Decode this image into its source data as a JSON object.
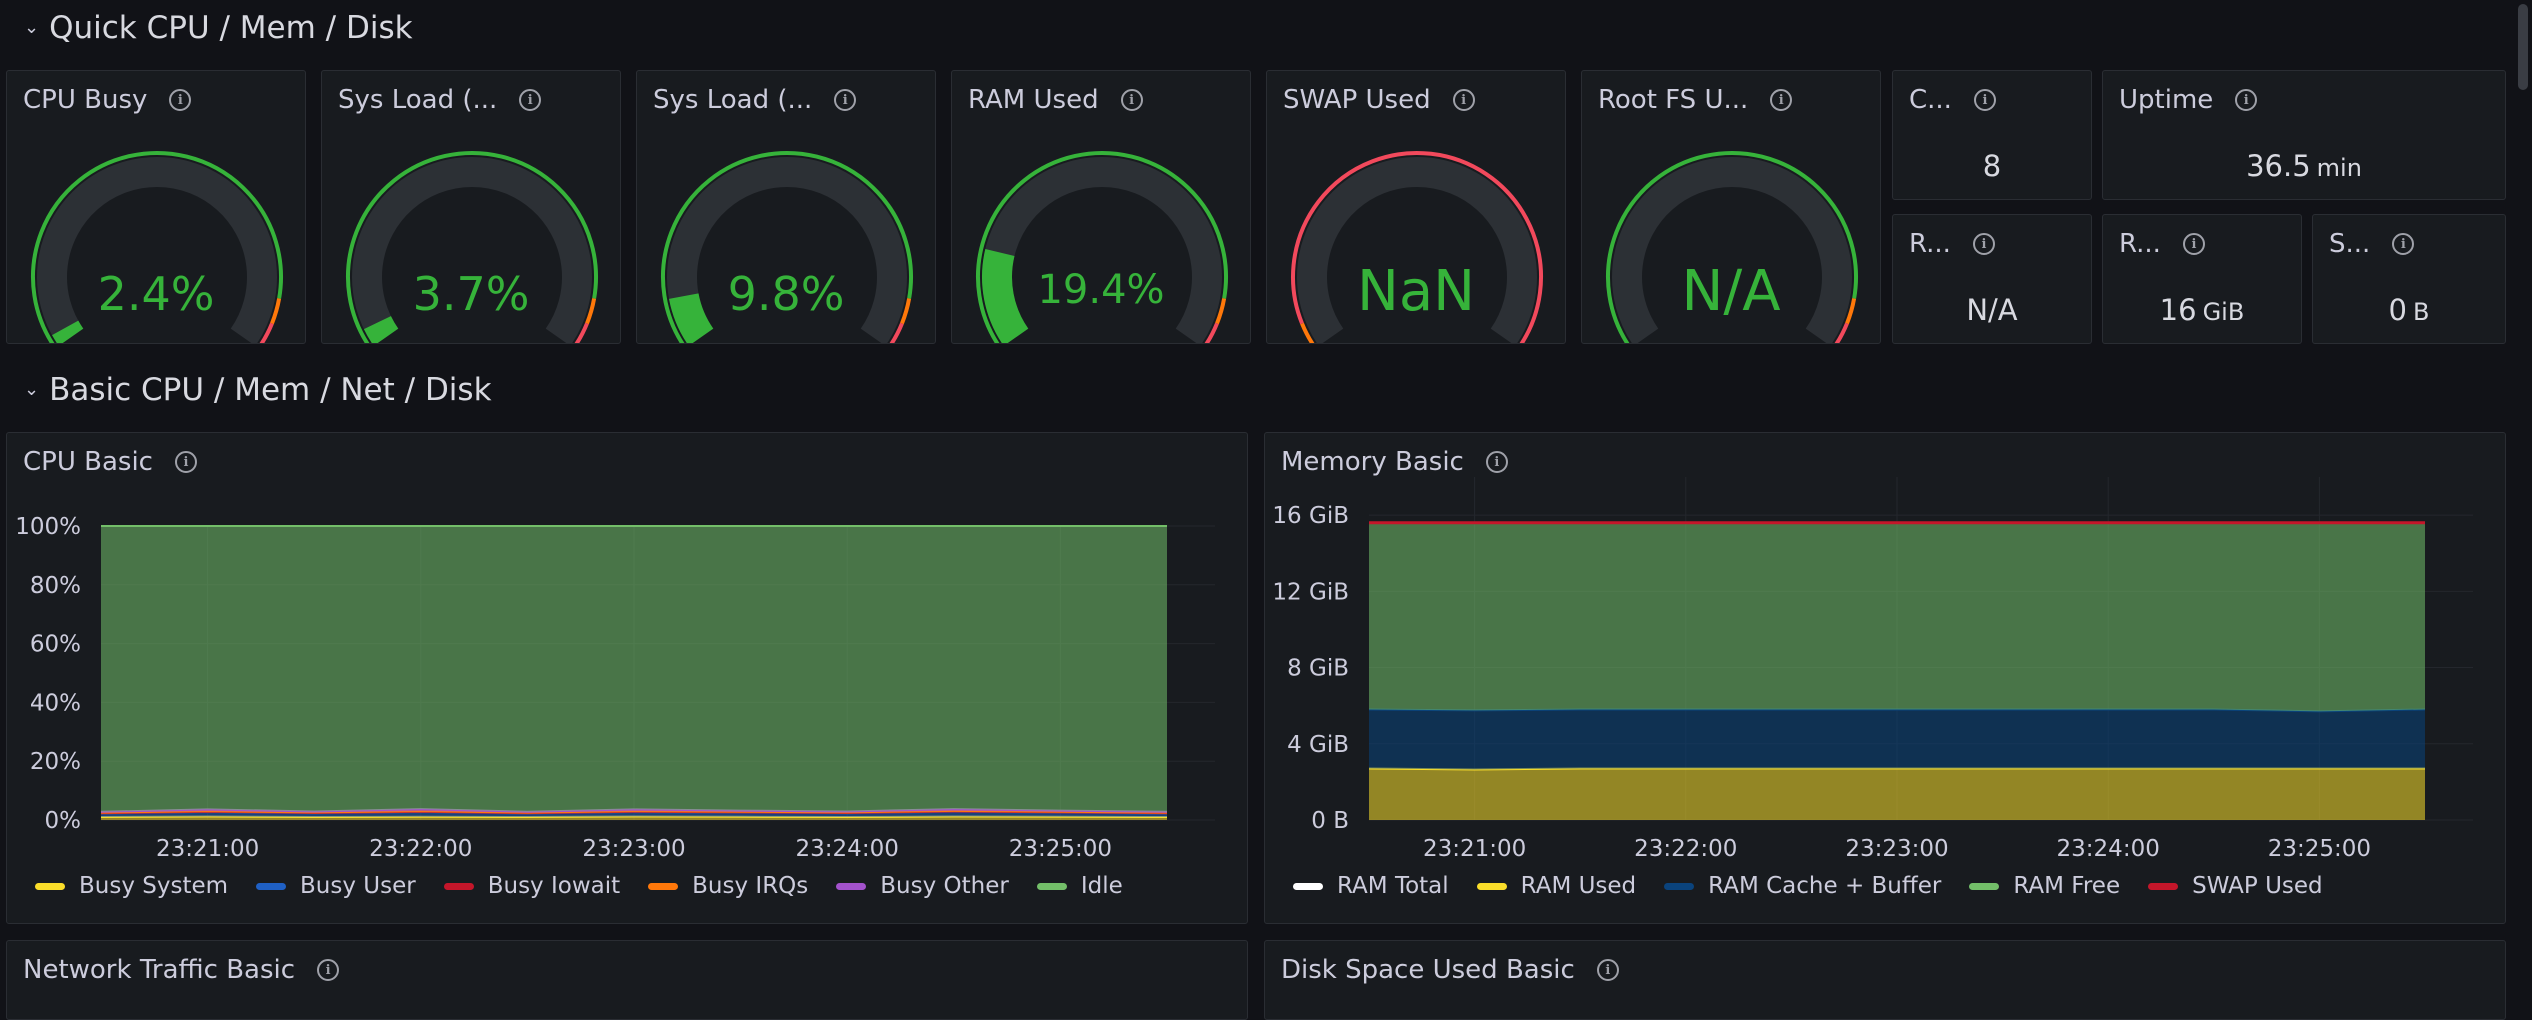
{
  "rows": {
    "quick": {
      "title": "Quick CPU / Mem / Disk"
    },
    "basic": {
      "title": "Basic CPU / Mem / Net / Disk"
    }
  },
  "gauges": [
    {
      "title": "CPU Busy",
      "value": "2.4%",
      "fraction": 0.024,
      "state": "ok"
    },
    {
      "title": "Sys Load (...",
      "value": "3.7%",
      "fraction": 0.037,
      "state": "ok"
    },
    {
      "title": "Sys Load (...",
      "value": "9.8%",
      "fraction": 0.098,
      "state": "ok"
    },
    {
      "title": "RAM Used",
      "value": "19.4%",
      "fraction": 0.194,
      "state": "ok"
    },
    {
      "title": "SWAP Used",
      "value": "NaN",
      "fraction": 0,
      "state": "nan"
    },
    {
      "title": "Root FS U...",
      "value": "N/A",
      "fraction": 0,
      "state": "na"
    }
  ],
  "stats": {
    "cores": {
      "title": "C...",
      "value": "8",
      "unit": ""
    },
    "uptime": {
      "title": "Uptime",
      "value": "36.5",
      "unit": "min"
    },
    "rootfs_total": {
      "title": "R...",
      "value": "N/A",
      "unit": ""
    },
    "ram_total": {
      "title": "R...",
      "value": "16",
      "unit": "GiB"
    },
    "swap_total": {
      "title": "S...",
      "value": "0",
      "unit": "B"
    }
  },
  "panels": {
    "cpu_basic": {
      "title": "CPU Basic"
    },
    "memory_basic": {
      "title": "Memory Basic"
    },
    "network_traffic": {
      "title": "Network Traffic Basic"
    },
    "disk_space": {
      "title": "Disk Space Used Basic"
    }
  },
  "colors": {
    "gauge_green": "#36b33a",
    "threshold_orange": "#ff780a",
    "threshold_red": "#f2495c",
    "track": "#2c3035"
  },
  "chart_data": [
    {
      "type": "area",
      "name": "CPU Basic",
      "x": [
        "23:20:40",
        "23:21:00",
        "23:21:30",
        "23:22:00",
        "23:22:30",
        "23:23:00",
        "23:23:30",
        "23:24:00",
        "23:24:30",
        "23:25:00",
        "23:25:10"
      ],
      "x_ticks": [
        "23:21:00",
        "23:22:00",
        "23:23:00",
        "23:24:00",
        "23:25:00"
      ],
      "y_ticks": [
        "0%",
        "20%",
        "40%",
        "60%",
        "80%",
        "100%"
      ],
      "ylim": [
        0,
        100
      ],
      "stacked": true,
      "series": [
        {
          "name": "Busy System",
          "color": "#fade2a",
          "values": [
            1.0,
            1.2,
            1.0,
            1.1,
            1.0,
            1.2,
            1.1,
            1.0,
            1.2,
            1.1,
            1.0
          ]
        },
        {
          "name": "Busy User",
          "color": "#1f60c4",
          "values": [
            1.2,
            1.5,
            1.3,
            1.6,
            1.2,
            1.5,
            1.4,
            1.3,
            1.6,
            1.4,
            1.2
          ]
        },
        {
          "name": "Busy Iowait",
          "color": "#c4162a",
          "values": [
            0.1,
            0.1,
            0.1,
            0.1,
            0.1,
            0.1,
            0.1,
            0.1,
            0.1,
            0.1,
            0.1
          ]
        },
        {
          "name": "Busy IRQs",
          "color": "#ff780a",
          "values": [
            0.2,
            0.2,
            0.2,
            0.2,
            0.2,
            0.2,
            0.2,
            0.2,
            0.2,
            0.2,
            0.2
          ]
        },
        {
          "name": "Busy Other",
          "color": "#a352cc",
          "values": [
            0.3,
            0.6,
            0.3,
            0.7,
            0.3,
            0.6,
            0.4,
            0.3,
            0.6,
            0.4,
            0.3
          ]
        },
        {
          "name": "Idle",
          "color": "#73bf69",
          "values": [
            97.2,
            96.4,
            97.1,
            96.3,
            97.2,
            96.4,
            96.8,
            97.1,
            96.3,
            96.8,
            97.2
          ]
        }
      ]
    },
    {
      "type": "area",
      "name": "Memory Basic",
      "x": [
        "23:20:40",
        "23:21:00",
        "23:21:30",
        "23:22:00",
        "23:22:30",
        "23:23:00",
        "23:23:30",
        "23:24:00",
        "23:24:30",
        "23:25:00",
        "23:25:10"
      ],
      "x_ticks": [
        "23:21:00",
        "23:22:00",
        "23:23:00",
        "23:24:00",
        "23:25:00"
      ],
      "y_ticks": [
        "0 B",
        "4 GiB",
        "8 GiB",
        "12 GiB",
        "16 GiB"
      ],
      "ylim": [
        0,
        18
      ],
      "unit": "GiB",
      "series": [
        {
          "name": "RAM Total",
          "color": "#ffffff",
          "values": [
            15.6,
            15.6,
            15.6,
            15.6,
            15.6,
            15.6,
            15.6,
            15.6,
            15.6,
            15.6,
            15.6
          ]
        },
        {
          "name": "RAM Used",
          "color": "#fade2a",
          "values": [
            2.7,
            2.65,
            2.7,
            2.7,
            2.7,
            2.7,
            2.7,
            2.7,
            2.7,
            2.7,
            2.7
          ]
        },
        {
          "name": "RAM Cache + Buffer",
          "color": "#0a437c",
          "values": [
            3.1,
            3.1,
            3.1,
            3.1,
            3.1,
            3.1,
            3.1,
            3.1,
            3.1,
            3.0,
            3.1
          ]
        },
        {
          "name": "RAM Free",
          "color": "#73bf69",
          "values": [
            9.8,
            9.85,
            9.8,
            9.8,
            9.8,
            9.8,
            9.8,
            9.8,
            9.8,
            9.9,
            9.8
          ]
        },
        {
          "name": "SWAP Used",
          "color": "#c4162a",
          "values": [
            0,
            0,
            0,
            0,
            0,
            0,
            0,
            0,
            0,
            0,
            0
          ]
        }
      ]
    }
  ]
}
